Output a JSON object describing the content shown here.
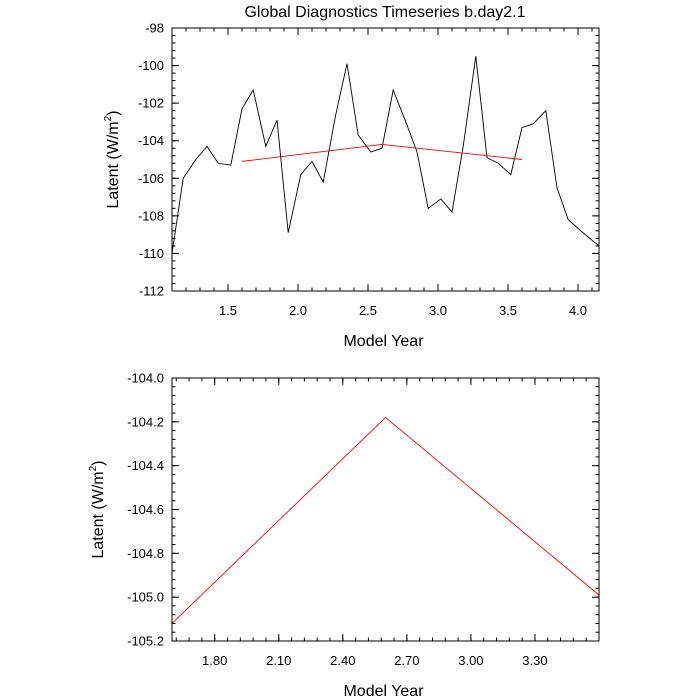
{
  "chart_data": [
    {
      "type": "line",
      "title": "Global Diagnostics Timeseries b.day2.1",
      "xlabel": "Model Year",
      "ylabel_main": "Latent (W/m",
      "ylabel_sup": "2",
      "ylabel_close": ")",
      "xlim": [
        1.1,
        4.15
      ],
      "ylim": [
        -112,
        -98
      ],
      "xticks": [
        1.5,
        2.0,
        2.5,
        3.0,
        3.5,
        4.0
      ],
      "xtick_labels": [
        "1.5",
        "2.0",
        "2.5",
        "3.0",
        "3.5",
        "4.0"
      ],
      "yticks": [
        -112,
        -110,
        -108,
        -106,
        -104,
        -102,
        -100,
        -98
      ],
      "ytick_labels": [
        "-112",
        "-110",
        "-108",
        "-106",
        "-104",
        "-102",
        "-100",
        "-98"
      ],
      "series": [
        {
          "color": "#000000",
          "x": [
            1.1,
            1.18,
            1.27,
            1.35,
            1.43,
            1.52,
            1.6,
            1.68,
            1.77,
            1.85,
            1.93,
            2.02,
            2.1,
            2.18,
            2.27,
            2.35,
            2.43,
            2.52,
            2.6,
            2.68,
            2.77,
            2.85,
            2.93,
            3.02,
            3.1,
            3.18,
            3.27,
            3.35,
            3.43,
            3.52,
            3.6,
            3.68,
            3.77,
            3.85,
            3.93,
            4.02,
            4.15
          ],
          "y": [
            -110.0,
            -106.0,
            -105.0,
            -104.3,
            -105.2,
            -105.3,
            -102.3,
            -101.3,
            -104.3,
            -102.9,
            -108.9,
            -105.8,
            -105.1,
            -106.2,
            -102.6,
            -99.9,
            -103.7,
            -104.6,
            -104.4,
            -101.3,
            -103.0,
            -104.6,
            -107.6,
            -107.1,
            -107.8,
            -104.3,
            -99.5,
            -104.9,
            -105.2,
            -105.8,
            -103.3,
            -103.1,
            -102.4,
            -106.5,
            -108.2,
            -108.8,
            -109.6
          ]
        },
        {
          "color": "#ff0000",
          "x": [
            1.6,
            2.6,
            3.6
          ],
          "y": [
            -105.1,
            -104.2,
            -105.0
          ]
        }
      ]
    },
    {
      "type": "line",
      "title": "",
      "xlabel": "Model Year",
      "ylabel_main": "Latent (W/m",
      "ylabel_sup": "2",
      "ylabel_close": ")",
      "xlim": [
        1.6,
        3.6
      ],
      "ylim": [
        -105.2,
        -104.0
      ],
      "xticks": [
        1.8,
        2.1,
        2.4,
        2.7,
        3.0,
        3.3
      ],
      "xtick_labels": [
        "1.80",
        "2.10",
        "2.40",
        "2.70",
        "3.00",
        "3.30"
      ],
      "yticks": [
        -105.2,
        -105.0,
        -104.8,
        -104.6,
        -104.4,
        -104.2,
        -104.0
      ],
      "ytick_labels": [
        "-105.2",
        "-105.0",
        "-104.8",
        "-104.6",
        "-104.4",
        "-104.2",
        "-104.0"
      ],
      "series": [
        {
          "color": "#ff0000",
          "x": [
            1.6,
            2.6,
            3.6
          ],
          "y": [
            -105.12,
            -104.18,
            -104.99
          ]
        }
      ]
    }
  ]
}
